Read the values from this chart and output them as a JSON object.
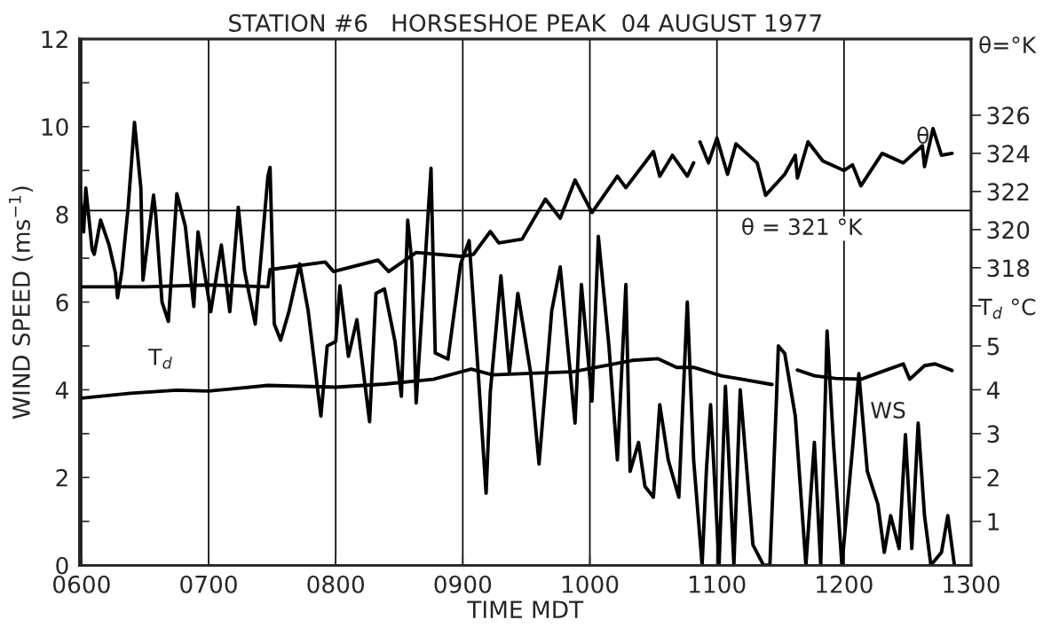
{
  "chart_data": {
    "type": "line",
    "title": "STATION #6   HORSESHOE PEAK  04 AUGUST 1977",
    "xlabel": "TIME MDT",
    "ylabel": "WIND SPEED (ms$^{−1}$)",
    "y2label": "θ=°K",
    "y3label": "T$_{d}$ °C",
    "xlim": [
      "1977-08-04T05:59",
      "1977-08-04T13:00"
    ],
    "xticks": [
      {
        "value": "1977-08-04T06:00",
        "label": "0600"
      },
      {
        "value": "1977-08-04T07:00",
        "label": "0700"
      },
      {
        "value": "1977-08-04T08:00",
        "label": "0800"
      },
      {
        "value": "1977-08-04T09:00",
        "label": "0900"
      },
      {
        "value": "1977-08-04T10:00",
        "label": "1000"
      },
      {
        "value": "1977-08-04T11:00",
        "label": "1100"
      },
      {
        "value": "1977-08-04T12:00",
        "label": "1200"
      },
      {
        "value": "1977-08-04T13:00",
        "label": "1300"
      }
    ],
    "ylim": [
      0,
      12
    ],
    "yticks": [
      0,
      {
        "value": 1,
        "label": null
      },
      2,
      {
        "value": 3,
        "label": null
      },
      4,
      {
        "value": 5,
        "label": null
      },
      6,
      {
        "value": 7,
        "label": null
      },
      8,
      {
        "value": 9,
        "label": null
      },
      10,
      {
        "value": 11,
        "label": null
      },
      12
    ],
    "y2lim": [
      302.4,
      330.0
    ],
    "y2ticks": [
      {
        "value": 316,
        "label": null
      },
      318,
      320,
      322,
      324,
      326
    ],
    "y3lim": [
      0,
      12
    ],
    "y3ticks": [
      1,
      2,
      3,
      4,
      5
    ],
    "grid": "x",
    "ref_lines": [
      {
        "axis": "y2",
        "value": 321,
        "label": "θ = 321 °K",
        "color": "#000000"
      }
    ],
    "annotations": [
      "θ",
      "T$_{d}$",
      "WS"
    ],
    "series": [
      {
        "axis": "y",
        "color": "#000000",
        "x": [
          "1977-08-04T05:59",
          "1977-08-04T06:01",
          "1977-08-04T06:02",
          "1977-08-04T06:05",
          "1977-08-04T06:06",
          "1977-08-04T06:09",
          "1977-08-04T06:13",
          "1977-08-04T06:16",
          "1977-08-04T06:17",
          "1977-08-04T06:19",
          "1977-08-04T06:22",
          "1977-08-04T06:25",
          "1977-08-04T06:28",
          "1977-08-04T06:29",
          "1977-08-04T06:34",
          "1977-08-04T06:35",
          "1977-08-04T06:38",
          "1977-08-04T06:41",
          "1977-08-04T06:45",
          "1977-08-04T06:49",
          "1977-08-04T06:53",
          "1977-08-04T06:55",
          "1977-08-04T07:01",
          "1977-08-04T07:06",
          "1977-08-04T07:10",
          "1977-08-04T07:14",
          "1977-08-04T07:17",
          "1977-08-04T07:22",
          "1977-08-04T07:28",
          "1977-08-04T07:29",
          "1977-08-04T07:31",
          "1977-08-04T07:34",
          "1977-08-04T07:38",
          "1977-08-04T07:43",
          "1977-08-04T07:47",
          "1977-08-04T07:53",
          "1977-08-04T07:56",
          "1977-08-04T08:00",
          "1977-08-04T08:02",
          "1977-08-04T08:06",
          "1977-08-04T08:10",
          "1977-08-04T08:16",
          "1977-08-04T08:19",
          "1977-08-04T08:23",
          "1977-08-04T08:28",
          "1977-08-04T08:31",
          "1977-08-04T08:34",
          "1977-08-04T08:36",
          "1977-08-04T08:38",
          "1977-08-04T08:45",
          "1977-08-04T08:47",
          "1977-08-04T08:53",
          "1977-08-04T08:59",
          "1977-08-04T09:03",
          "1977-08-04T09:07",
          "1977-08-04T09:11",
          "1977-08-04T09:13",
          "1977-08-04T09:18",
          "1977-08-04T09:22",
          "1977-08-04T09:26",
          "1977-08-04T09:32",
          "1977-08-04T09:36",
          "1977-08-04T09:42",
          "1977-08-04T09:46",
          "1977-08-04T09:53",
          "1977-08-04T09:56",
          "1977-08-04T10:01",
          "1977-08-04T10:04",
          "1977-08-04T10:09",
          "1977-08-04T10:13",
          "1977-08-04T10:17",
          "1977-08-04T10:19",
          "1977-08-04T10:23",
          "1977-08-04T10:26",
          "1977-08-04T10:30",
          "1977-08-04T10:33",
          "1977-08-04T10:37",
          "1977-08-04T10:42",
          "1977-08-04T10:46",
          "1977-08-04T10:49",
          "1977-08-04T10:53",
          "1977-08-04T10:55",
          "1977-08-04T10:57",
          "1977-08-04T11:01",
          "1977-08-04T11:04",
          "1977-08-04T11:08",
          "1977-08-04T11:11",
          "1977-08-04T11:17",
          "1977-08-04T11:22",
          "1977-08-04T11:25",
          "1977-08-04T11:28",
          "1977-08-04T11:29",
          "1977-08-04T11:32",
          "1977-08-04T11:37",
          "1977-08-04T11:42",
          "1977-08-04T11:46",
          "1977-08-04T11:49",
          "1977-08-04T11:52",
          "1977-08-04T11:55",
          "1977-08-04T11:59",
          "1977-08-04T12:04",
          "1977-08-04T12:07",
          "1977-08-04T12:11",
          "1977-08-04T12:16",
          "1977-08-04T12:19",
          "1977-08-04T12:22",
          "1977-08-04T12:26",
          "1977-08-04T12:29",
          "1977-08-04T12:32",
          "1977-08-04T12:35",
          "1977-08-04T12:38",
          "1977-08-04T12:41",
          "1977-08-04T12:46",
          "1977-08-04T12:49",
          "1977-08-04T12:52"
        ],
        "values": [
          8.7,
          7.6,
          8.6,
          7.2,
          7.09,
          7.87,
          7.3,
          6.66,
          6.1,
          6.7,
          8.16,
          10.1,
          8.6,
          6.5,
          8.44,
          8.0,
          6.0,
          5.56,
          8.47,
          7.73,
          5.9,
          7.6,
          5.78,
          7.3,
          5.78,
          8.16,
          6.7,
          5.5,
          8.87,
          9.07,
          5.5,
          5.13,
          5.8,
          6.87,
          5.8,
          3.4,
          5.0,
          5.1,
          6.37,
          4.76,
          5.6,
          3.27,
          6.2,
          6.3,
          5.1,
          3.85,
          7.87,
          6.87,
          3.7,
          9.05,
          4.84,
          4.7,
          6.87,
          7.4,
          4.6,
          1.64,
          3.95,
          6.6,
          4.4,
          6.2,
          4.4,
          2.31,
          5.8,
          6.8,
          3.24,
          6.4,
          3.74,
          7.5,
          5.0,
          2.4,
          6.4,
          2.14,
          2.8,
          1.8,
          1.55,
          3.66,
          2.4,
          1.55,
          6.0,
          2.4,
          0,
          2.14,
          3.66,
          0,
          4.08,
          0,
          4.0,
          0.46,
          0,
          0,
          3.66,
          5.0,
          4.83,
          3.4,
          0,
          2.8,
          0,
          5.34,
          2.8,
          0,
          2.65,
          4.37,
          2.14,
          1.39,
          0.29,
          1.13,
          0.38,
          2.98,
          0.38,
          3.24,
          1.13,
          0,
          0.29,
          1.13,
          0.04
        ]
      },
      {
        "axis": "y2",
        "color": "#000000",
        "x": [
          "1977-08-04T06:00",
          "1977-08-04T06:30",
          "1977-08-04T07:00",
          "1977-08-04T07:28",
          "1977-08-04T07:29",
          "1977-08-04T07:55",
          "1977-08-04T07:59",
          "1977-08-04T08:20",
          "1977-08-04T08:25",
          "1977-08-04T08:38",
          "1977-08-04T08:59",
          "1977-08-04T09:05",
          "1977-08-04T09:13",
          "1977-08-04T09:17",
          "1977-08-04T09:28",
          "1977-08-04T09:39",
          "1977-08-04T09:46",
          "1977-08-04T09:53",
          "1977-08-04T10:01",
          "1977-08-04T10:13",
          "1977-08-04T10:17",
          "1977-08-04T10:30",
          "1977-08-04T10:33",
          "1977-08-04T10:39",
          "1977-08-04T10:46",
          "1977-08-04T10:49",
          "1977-08-04T10:50",
          "1977-08-04T10:52",
          "1977-08-04T10:56",
          "1977-08-04T11:00",
          "1977-08-04T11:05",
          "1977-08-04T11:09",
          "1977-08-04T11:19",
          "1977-08-04T11:23",
          "1977-08-04T11:32",
          "1977-08-04T11:37",
          "1977-08-04T11:38",
          "1977-08-04T11:43",
          "1977-08-04T11:50",
          "1977-08-04T12:00",
          "1977-08-04T12:04",
          "1977-08-04T12:08",
          "1977-08-04T12:18",
          "1977-08-04T12:28",
          "1977-08-04T12:37",
          "1977-08-04T12:38",
          "1977-08-04T12:42",
          "1977-08-04T12:46",
          "1977-08-04T12:51"
        ],
        "values": [
          317.0,
          317.0,
          317.1,
          317.0,
          317.9,
          318.3,
          317.8,
          318.4,
          317.8,
          318.8,
          318.6,
          318.7,
          319.9,
          319.3,
          319.5,
          321.6,
          320.6,
          322.6,
          320.9,
          322.8,
          322.2,
          324.1,
          322.8,
          323.9,
          322.8,
          323.5,
          null,
          324.6,
          323.5,
          324.8,
          322.9,
          324.5,
          323.5,
          321.8,
          322.9,
          323.9,
          322.7,
          324.6,
          323.6,
          323.1,
          323.4,
          322.3,
          324.0,
          323.5,
          324.4,
          323.3,
          325.3,
          323.9,
          324.0
        ]
      },
      {
        "axis": "y3",
        "color": "#000000",
        "x": [
          "1977-08-04T06:00",
          "1977-08-04T06:23",
          "1977-08-04T06:45",
          "1977-08-04T07:00",
          "1977-08-04T07:28",
          "1977-08-04T08:00",
          "1977-08-04T08:23",
          "1977-08-04T08:46",
          "1977-08-04T09:04",
          "1977-08-04T09:14",
          "1977-08-04T09:35",
          "1977-08-04T09:52",
          "1977-08-04T10:20",
          "1977-08-04T10:32",
          "1977-08-04T10:41",
          "1977-08-04T10:49",
          "1977-08-04T11:02",
          "1977-08-04T11:12",
          "1977-08-04T11:26",
          "1977-08-04T11:30",
          "1977-08-04T11:38",
          "1977-08-04T11:46",
          "1977-08-04T11:56",
          "1977-08-04T12:08",
          "1977-08-04T12:20",
          "1977-08-04T12:28",
          "1977-08-04T12:31",
          "1977-08-04T12:38",
          "1977-08-04T12:43",
          "1977-08-04T12:51"
        ],
        "values": [
          3.81,
          3.92,
          3.99,
          3.97,
          4.1,
          4.06,
          4.13,
          4.24,
          4.47,
          4.34,
          4.38,
          4.41,
          4.67,
          4.71,
          4.51,
          4.51,
          4.32,
          4.24,
          4.12,
          null,
          4.45,
          4.32,
          4.26,
          4.24,
          4.45,
          4.59,
          4.24,
          4.55,
          4.59,
          4.44
        ]
      }
    ]
  }
}
